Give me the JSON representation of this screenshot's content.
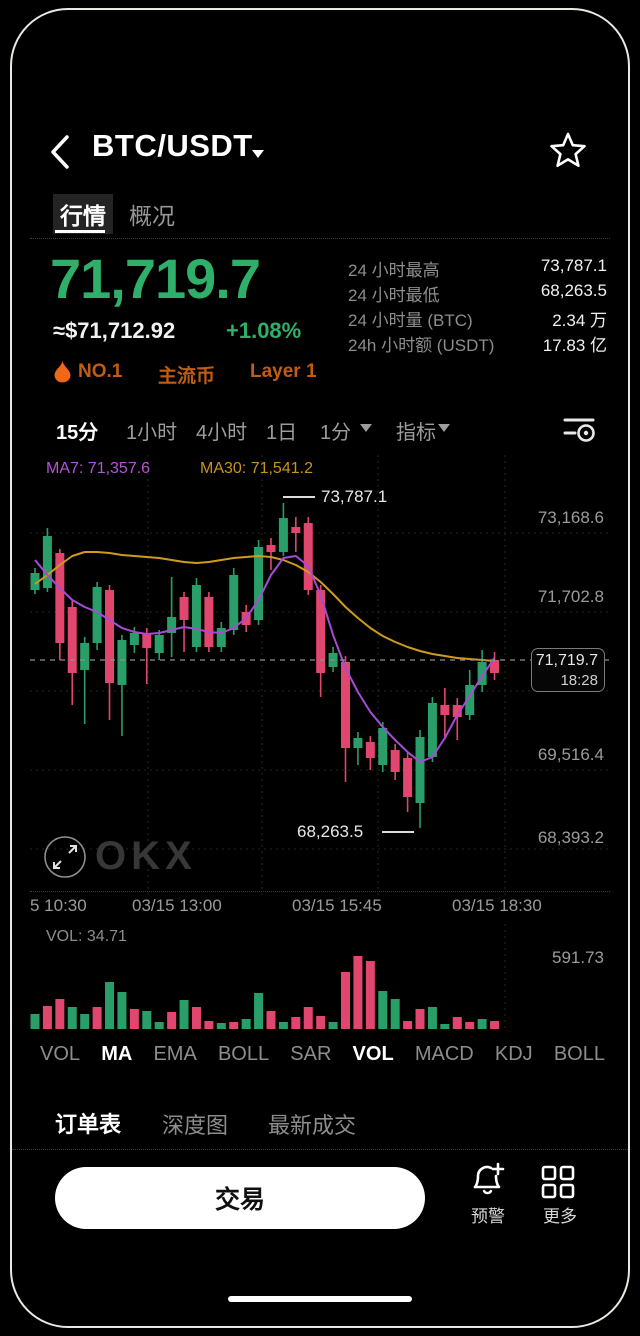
{
  "header": {
    "title": "BTC/USDT"
  },
  "tabs": {
    "market": "行情",
    "overview": "概况"
  },
  "price": {
    "last": "71,719.7",
    "fiat": "≈$71,712.92",
    "change": "+1.08%"
  },
  "badges": {
    "rank": "NO.1",
    "tag1": "主流币",
    "tag2": "Layer 1"
  },
  "stats": {
    "rows": [
      {
        "label": "24 小时最高",
        "value": "73,787.1"
      },
      {
        "label": "24 小时最低",
        "value": "68,263.5"
      },
      {
        "label": "24 小时量 (BTC)",
        "value": "2.34 万"
      },
      {
        "label": "24h 小时额 (USDT)",
        "value": "17.83 亿"
      }
    ]
  },
  "timeframes": {
    "t15": "15分",
    "t1h": "1小时",
    "t4h": "4小时",
    "t1d": "1日",
    "dropdown": "1分",
    "indicator": "指标"
  },
  "chart": {
    "ma7_label": "MA7: 71,357.6",
    "ma30_label": "MA30: 71,541.2",
    "high_annotation": "73,787.1",
    "low_annotation": "68,263.5",
    "price_tag": {
      "price": "71,719.7",
      "time": "18:28"
    },
    "y_labels": [
      "73,168.6",
      "71,702.8",
      "69,516.4",
      "68,393.2"
    ],
    "x_labels": [
      "5 10:30",
      "03/15 13:00",
      "03/15 15:45",
      "03/15 18:30"
    ],
    "watermark": "OKX"
  },
  "volume": {
    "label": "VOL: 34.71",
    "max_label": "591.73"
  },
  "indicators": {
    "items": [
      {
        "label": "VOL"
      },
      {
        "label": "MA"
      },
      {
        "label": "EMA"
      },
      {
        "label": "BOLL"
      },
      {
        "label": "SAR"
      },
      {
        "label": "VOL"
      },
      {
        "label": "MACD"
      },
      {
        "label": "KDJ"
      },
      {
        "label": "BOLL"
      }
    ]
  },
  "order_tabs": {
    "orderbook": "订单表",
    "depth": "深度图",
    "trades": "最新成交"
  },
  "footer": {
    "trade": "交易",
    "alert": "预警",
    "more": "更多"
  },
  "colors": {
    "up": "#2a9e69",
    "down": "#e1466e",
    "ma7": "#a64bd4",
    "ma30": "#cf9b1e",
    "accent_green": "#2eb06a",
    "accent_orange": "#c05d12"
  },
  "chart_data": {
    "type": "candlestick",
    "timeframe": "15分",
    "last_price": 71719.7,
    "last_time": "18:28",
    "high_24h": 73787.1,
    "low_24h": 68263.5,
    "vol_current": 34.71,
    "vol_max": 591.73,
    "y_axis_values": [
      73168.6,
      71702.8,
      69516.4,
      68393.2
    ],
    "x_axis_labels": [
      "5 10:30",
      "03/15 13:00",
      "03/15 15:45",
      "03/15 18:30"
    ],
    "candles": [
      [
        72308.1,
        72682.1,
        72240.1,
        72597.1
      ],
      [
        72342.1,
        73362.1,
        72274.1,
        73226.1
      ],
      [
        72937.1,
        73005.1,
        71118.1,
        71407.1
      ],
      [
        72019.1,
        72138.1,
        70353.1,
        70897.1
      ],
      [
        70948.1,
        71509.1,
        70030.1,
        71407.1
      ],
      [
        71407.1,
        72444.1,
        71288.1,
        72359.1
      ],
      [
        72308.1,
        72393.1,
        70098.1,
        70727.1
      ],
      [
        70693.1,
        71543.1,
        69826.1,
        71458.1
      ],
      [
        71373.1,
        71679.1,
        71237.1,
        71577.1
      ],
      [
        71577.1,
        71662.1,
        70710.1,
        71322.1
      ],
      [
        71237.1,
        71628.1,
        71118.1,
        71543.1
      ],
      [
        71577.1,
        72529.1,
        71169.1,
        71849.1
      ],
      [
        72189.1,
        72274.1,
        71254.1,
        71798.1
      ],
      [
        71339.1,
        72512.1,
        71254.1,
        72393.1
      ],
      [
        72189.1,
        72274.1,
        71254.1,
        71339.1
      ],
      [
        71339.1,
        71764.1,
        71254.1,
        71662.1
      ],
      [
        71628.1,
        72682.1,
        71543.1,
        72563.1
      ],
      [
        71934.1,
        72053.1,
        71594.1,
        71713.1
      ],
      [
        71798.1,
        73158.1,
        71713.1,
        73039.1
      ],
      [
        73073.1,
        73192.1,
        72648.1,
        72954.1
      ],
      [
        72954.1,
        73787.1,
        72886.1,
        73532.1
      ],
      [
        73379.1,
        73549.1,
        72954.1,
        73277.1
      ],
      [
        73447.1,
        73549.1,
        72223.1,
        72308.1
      ],
      [
        72308.1,
        72393.1,
        70489.1,
        70897.1
      ],
      [
        70999.1,
        71339.1,
        70914.1,
        71237.1
      ],
      [
        71084.1,
        71186.1,
        69044.1,
        69622.1
      ],
      [
        69622.1,
        69894.1,
        69333.1,
        69792.1
      ],
      [
        69724.1,
        69826.1,
        69248.1,
        69452.1
      ],
      [
        69333.1,
        70064.1,
        69214.1,
        69962.1
      ],
      [
        69588.1,
        69690.1,
        69078.1,
        69214.1
      ],
      [
        69452.1,
        69554.1,
        68534.1,
        68789.1
      ],
      [
        68687.1,
        69928.1,
        68263.5,
        69809.1
      ],
      [
        69469.1,
        70489.1,
        69384.1,
        70387.1
      ],
      [
        70353.1,
        70642.1,
        69809.1,
        70183.1
      ],
      [
        70353.1,
        70472.1,
        69758.1,
        70149.1
      ],
      [
        70183.1,
        70948.1,
        70098.1,
        70693.1
      ],
      [
        70693.1,
        71288.1,
        70574.1,
        71084.1
      ],
      [
        71118.1,
        71254.1,
        70778.1,
        70897.1
      ]
    ],
    "ma7": [
      72818.1,
      72563.1,
      72342.1,
      72138.1,
      72019.1,
      71934.1,
      71798.1,
      71662.1,
      71594.1,
      71560.1,
      71577.1,
      71628.1,
      71679.1,
      71645.1,
      71594.1,
      71577.1,
      71662.1,
      71832.1,
      72138.1,
      72563.1,
      72852.1,
      72886.1,
      72716.1,
      72223.1,
      71543.1,
      70982.1,
      70574.1,
      70234.1,
      69979.1,
      69758.1,
      69554.1,
      69384.1,
      69469.1,
      69792.1,
      70183.1,
      70506.1,
      70846.1,
      71152.1
    ],
    "ma30": [
      72410.1,
      72563.1,
      72733.1,
      72886.1,
      72954.1,
      72954.1,
      72937.1,
      72903.1,
      72886.1,
      72869.1,
      72852.1,
      72818.1,
      72784.1,
      72767.1,
      72784.1,
      72818.1,
      72852.1,
      72869.1,
      72886.1,
      72869.1,
      72818.1,
      72733.1,
      72614.1,
      72444.1,
      72240.1,
      72019.1,
      71832.1,
      71662.1,
      71526.1,
      71424.1,
      71339.1,
      71271.1,
      71220.1,
      71186.1,
      71152.1,
      71135.1,
      71118.1,
      71101.1
    ],
    "volumes": [
      {
        "v": 121.6,
        "dir": "up"
      },
      {
        "v": 186.4,
        "dir": "down"
      },
      {
        "v": 243.2,
        "dir": "down"
      },
      {
        "v": 178.3,
        "dir": "up"
      },
      {
        "v": 121.6,
        "dir": "up"
      },
      {
        "v": 178.3,
        "dir": "down"
      },
      {
        "v": 381.0,
        "dir": "up"
      },
      {
        "v": 299.9,
        "dir": "up"
      },
      {
        "v": 162.1,
        "dir": "down"
      },
      {
        "v": 145.9,
        "dir": "up"
      },
      {
        "v": 56.7,
        "dir": "up"
      },
      {
        "v": 137.8,
        "dir": "down"
      },
      {
        "v": 235.1,
        "dir": "up"
      },
      {
        "v": 178.3,
        "dir": "down"
      },
      {
        "v": 64.8,
        "dir": "down"
      },
      {
        "v": 48.6,
        "dir": "up"
      },
      {
        "v": 56.7,
        "dir": "down"
      },
      {
        "v": 81.1,
        "dir": "up"
      },
      {
        "v": 291.8,
        "dir": "up"
      },
      {
        "v": 145.9,
        "dir": "down"
      },
      {
        "v": 56.7,
        "dir": "up"
      },
      {
        "v": 97.3,
        "dir": "down"
      },
      {
        "v": 178.3,
        "dir": "down"
      },
      {
        "v": 105.4,
        "dir": "down"
      },
      {
        "v": 56.7,
        "dir": "up"
      },
      {
        "v": 462.0,
        "dir": "down"
      },
      {
        "v": 591.7,
        "dir": "down"
      },
      {
        "v": 551.2,
        "dir": "down"
      },
      {
        "v": 308.0,
        "dir": "up"
      },
      {
        "v": 243.2,
        "dir": "up"
      },
      {
        "v": 64.8,
        "dir": "down"
      },
      {
        "v": 162.1,
        "dir": "down"
      },
      {
        "v": 178.3,
        "dir": "up"
      },
      {
        "v": 40.5,
        "dir": "up"
      },
      {
        "v": 97.3,
        "dir": "down"
      },
      {
        "v": 56.7,
        "dir": "down"
      },
      {
        "v": 81.1,
        "dir": "up"
      },
      {
        "v": 64.8,
        "dir": "down"
      }
    ]
  }
}
